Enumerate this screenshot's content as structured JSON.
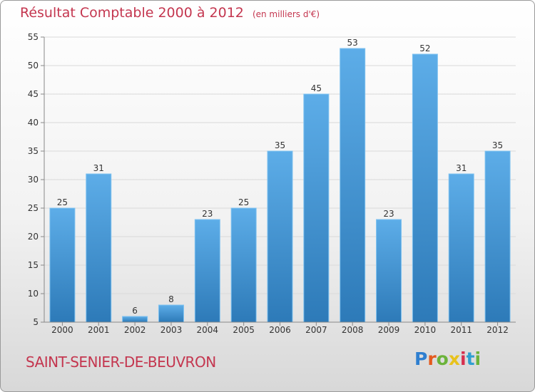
{
  "title": "Résultat Comptable 2000 à 2012",
  "subtitle": "(en milliers d'€)",
  "commune": "SAINT-SENIER-DE-BEUVRON",
  "logo": {
    "text": "Proxiti",
    "colors": [
      "#2f7fd0",
      "#e45a1e",
      "#6bb33a",
      "#e8c21b",
      "#d6304f",
      "#2f9fd0",
      "#6bb33a"
    ]
  },
  "colors": {
    "bar_top": "#5dade8",
    "bar_bottom": "#2d7ab8",
    "title": "#c4364f"
  },
  "chart_data": {
    "type": "bar",
    "title": "Résultat Comptable 2000 à 2012",
    "ylabel": "en milliers d'€",
    "xlabel": "",
    "categories": [
      "2000",
      "2001",
      "2002",
      "2003",
      "2004",
      "2005",
      "2006",
      "2007",
      "2008",
      "2009",
      "2010",
      "2011",
      "2012"
    ],
    "values": [
      25,
      31,
      6,
      8,
      23,
      25,
      35,
      45,
      53,
      23,
      52,
      31,
      35
    ],
    "ylim": [
      5,
      55
    ],
    "yticks": [
      5,
      10,
      15,
      20,
      25,
      30,
      35,
      40,
      45,
      50,
      55
    ],
    "grid": true,
    "legend": "none"
  }
}
